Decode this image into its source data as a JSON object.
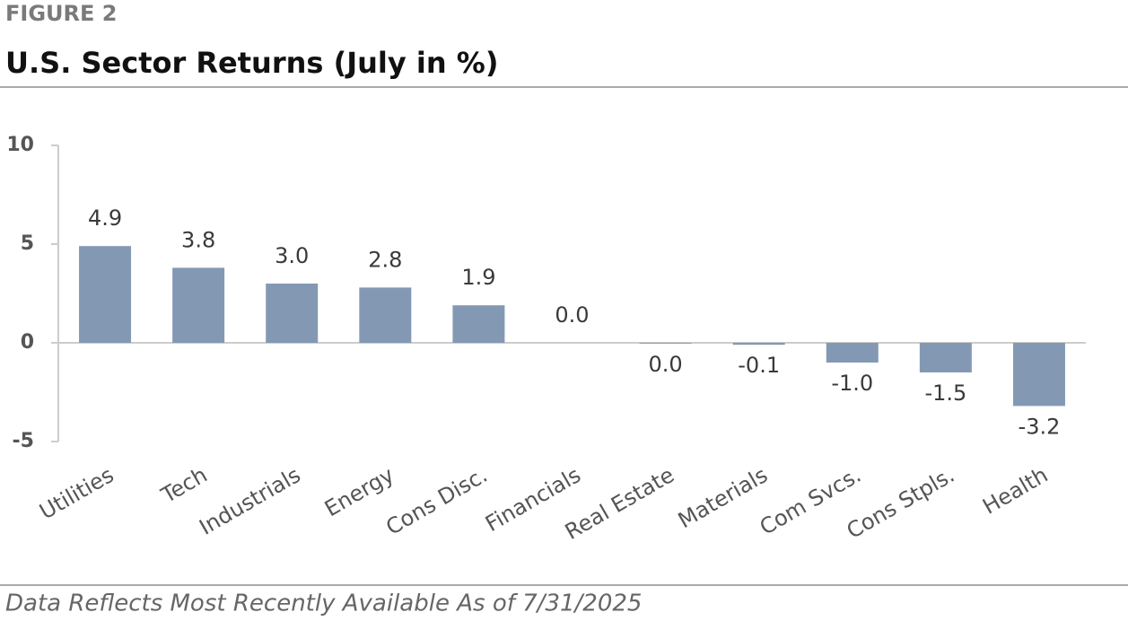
{
  "chart_data": {
    "type": "bar",
    "figure_label": "FIGURE 2",
    "title": "U.S. Sector Returns (July in %)",
    "footnote": "Data Reflects Most Recently Available As of 7/31/2025",
    "categories": [
      "Utilities",
      "Tech",
      "Industrials",
      "Energy",
      "Cons Disc.",
      "Financials",
      "Real Estate",
      "Materials",
      "Com Svcs.",
      "Cons Stpls.",
      "Health"
    ],
    "values": [
      4.9,
      3.8,
      3.0,
      2.8,
      1.9,
      0.0,
      -0.04,
      -0.1,
      -1.0,
      -1.5,
      -3.2
    ],
    "value_labels": [
      "4.9",
      "3.8",
      "3.0",
      "2.8",
      "1.9",
      "0.0",
      "0.0",
      "-0.1",
      "-1.0",
      "-1.5",
      "-3.2"
    ],
    "color": "#8399b3",
    "ylim": [
      -5,
      10
    ],
    "yticks": [
      -5,
      0,
      5,
      10
    ],
    "grid": false
  }
}
